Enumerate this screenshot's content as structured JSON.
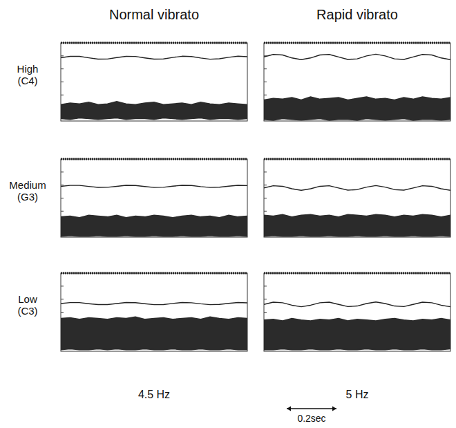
{
  "figure": {
    "columns": [
      {
        "title": "Normal vibrato",
        "rate": "4.5 Hz"
      },
      {
        "title": "Rapid vibrato",
        "rate": "5 Hz"
      }
    ],
    "rows": [
      {
        "label": "High",
        "note": "(C4)"
      },
      {
        "label": "Medium",
        "note": "(G3)"
      },
      {
        "label": "Low",
        "note": "(C3)"
      }
    ],
    "scale_bar": {
      "value": 0.2,
      "label": "0.2sec"
    }
  },
  "chart_data": [
    {
      "type": "line",
      "tick_labels": false,
      "xlim": [
        0,
        0.75
      ],
      "ylim": [
        0,
        100
      ],
      "x": [
        0,
        0.0375,
        0.075,
        0.1125,
        0.15,
        0.1875,
        0.225,
        0.2625,
        0.3,
        0.3375,
        0.375,
        0.4125,
        0.45,
        0.4875,
        0.525,
        0.5625,
        0.6,
        0.6375,
        0.675,
        0.7125,
        0.75
      ],
      "series": [
        {
          "type": "line",
          "color": "#222222",
          "values": [
            81,
            82.7,
            82.7,
            80.9,
            79.2,
            79.3,
            81.2,
            82.8,
            82.6,
            80.8,
            79.2,
            79.4,
            81.3,
            82.9,
            82.5,
            80.6,
            79.1,
            79.6,
            81.5,
            82.9,
            82.3
          ]
        },
        {
          "type": "area",
          "color": "#2b2b2b",
          "values": [
            21,
            23,
            22,
            24,
            21,
            22,
            25,
            22,
            21,
            23,
            24,
            21,
            22,
            23,
            21,
            24,
            22,
            21,
            23,
            22,
            21
          ],
          "lower": [
            3,
            2,
            4,
            3,
            2,
            3,
            4,
            2,
            3,
            3,
            2,
            4,
            3,
            2,
            3,
            4,
            2,
            3,
            3,
            2,
            3
          ]
        }
      ]
    },
    {
      "type": "line",
      "tick_labels": false,
      "xlim": [
        0,
        0.75
      ],
      "ylim": [
        0,
        100
      ],
      "x": [
        0,
        0.0375,
        0.075,
        0.1125,
        0.15,
        0.1875,
        0.225,
        0.2625,
        0.3,
        0.3375,
        0.375,
        0.4125,
        0.45,
        0.4875,
        0.525,
        0.5625,
        0.6,
        0.6375,
        0.675,
        0.7125,
        0.75
      ],
      "series": [
        {
          "type": "line",
          "color": "#222222",
          "values": [
            82,
            85.2,
            84.5,
            80.7,
            78.5,
            80.7,
            84.5,
            85.2,
            82,
            78.8,
            79.5,
            83.3,
            85.5,
            83.3,
            79.5,
            78.8,
            82,
            85.2,
            84.5,
            80.7,
            78.5
          ]
        },
        {
          "type": "area",
          "color": "#2b2b2b",
          "values": [
            27,
            29,
            28,
            30,
            27,
            31,
            28,
            29,
            30,
            27,
            29,
            31,
            28,
            29,
            27,
            30,
            28,
            31,
            29,
            28,
            30
          ],
          "lower": [
            2,
            1,
            3,
            2,
            1,
            2,
            3,
            1,
            2,
            2,
            1,
            3,
            2,
            1,
            2,
            3,
            1,
            2,
            2,
            1,
            2
          ]
        }
      ]
    },
    {
      "type": "line",
      "tick_labels": false,
      "xlim": [
        0,
        0.75
      ],
      "ylim": [
        0,
        100
      ],
      "x": [
        0,
        0.0375,
        0.075,
        0.1125,
        0.15,
        0.1875,
        0.225,
        0.2625,
        0.3,
        0.3375,
        0.375,
        0.4125,
        0.45,
        0.4875,
        0.525,
        0.5625,
        0.6,
        0.6375,
        0.675,
        0.7125,
        0.75
      ],
      "series": [
        {
          "type": "line",
          "color": "#222222",
          "values": [
            65,
            66.3,
            66.3,
            64.9,
            63.7,
            63.8,
            65.1,
            66.4,
            66.2,
            64.8,
            63.6,
            63.8,
            65.2,
            66.4,
            66.1,
            64.7,
            63.6,
            64,
            65.3,
            66.4,
            66
          ]
        },
        {
          "type": "area",
          "color": "#2b2b2b",
          "values": [
            26,
            27,
            25,
            28,
            27,
            26,
            28,
            25,
            27,
            26,
            28,
            27,
            25,
            27,
            28,
            26,
            27,
            25,
            28,
            26,
            27
          ],
          "lower": [
            1,
            2,
            1,
            1,
            2,
            1,
            1,
            2,
            1,
            1,
            2,
            1,
            1,
            2,
            1,
            1,
            2,
            1,
            1,
            2,
            1
          ]
        }
      ]
    },
    {
      "type": "line",
      "tick_labels": false,
      "xlim": [
        0,
        0.75
      ],
      "ylim": [
        0,
        100
      ],
      "x": [
        0,
        0.0375,
        0.075,
        0.1125,
        0.15,
        0.1875,
        0.225,
        0.2625,
        0.3,
        0.3375,
        0.375,
        0.4125,
        0.45,
        0.4875,
        0.525,
        0.5625,
        0.6,
        0.6375,
        0.675,
        0.7125,
        0.75
      ],
      "series": [
        {
          "type": "line",
          "color": "#222222",
          "values": [
            63,
            65.8,
            65.1,
            61.9,
            60,
            61.9,
            65.1,
            65.8,
            63,
            60.2,
            60.9,
            64.1,
            66,
            64.1,
            60.9,
            60.2,
            63,
            65.8,
            65.1,
            61.9,
            60
          ]
        },
        {
          "type": "area",
          "color": "#2b2b2b",
          "values": [
            28,
            27,
            29,
            26,
            28,
            29,
            27,
            28,
            26,
            29,
            28,
            27,
            29,
            28,
            26,
            28,
            27,
            29,
            28,
            26,
            28
          ],
          "lower": [
            1,
            2,
            1,
            1,
            2,
            1,
            1,
            2,
            1,
            1,
            2,
            1,
            1,
            2,
            1,
            1,
            2,
            1,
            1,
            2,
            1
          ]
        }
      ]
    },
    {
      "type": "line",
      "tick_labels": false,
      "xlim": [
        0,
        0.75
      ],
      "ylim": [
        0,
        100
      ],
      "x": [
        0,
        0.0375,
        0.075,
        0.1125,
        0.15,
        0.1875,
        0.225,
        0.2625,
        0.3,
        0.3375,
        0.375,
        0.4125,
        0.45,
        0.4875,
        0.525,
        0.5625,
        0.6,
        0.6375,
        0.675,
        0.7125,
        0.75
      ],
      "series": [
        {
          "type": "line",
          "color": "#222222",
          "values": [
            61,
            62.3,
            62.3,
            60.9,
            59.7,
            59.8,
            61.1,
            62.4,
            62.2,
            60.8,
            59.6,
            59.8,
            61.2,
            62.4,
            62.1,
            60.7,
            59.6,
            60,
            61.3,
            62.4,
            62
          ]
        },
        {
          "type": "area",
          "color": "#2b2b2b",
          "values": [
            42,
            43,
            41,
            43,
            42,
            41,
            43,
            42,
            44,
            41,
            42,
            43,
            41,
            42,
            43,
            41,
            44,
            42,
            41,
            43,
            42
          ],
          "lower": [
            2,
            3,
            2,
            2,
            3,
            2,
            3,
            2,
            2,
            3,
            2,
            2,
            3,
            2,
            2,
            3,
            2,
            2,
            3,
            2,
            2
          ]
        }
      ]
    },
    {
      "type": "line",
      "tick_labels": false,
      "xlim": [
        0,
        0.75
      ],
      "ylim": [
        0,
        100
      ],
      "x": [
        0,
        0.0375,
        0.075,
        0.1125,
        0.15,
        0.1875,
        0.225,
        0.2625,
        0.3,
        0.3375,
        0.375,
        0.4125,
        0.45,
        0.4875,
        0.525,
        0.5625,
        0.6,
        0.6375,
        0.675,
        0.7125,
        0.75
      ],
      "series": [
        {
          "type": "line",
          "color": "#222222",
          "values": [
            60,
            62.8,
            62.1,
            58.9,
            57,
            58.9,
            62.1,
            62.8,
            60,
            57.2,
            57.9,
            61.1,
            63,
            61.1,
            57.9,
            57.2,
            60,
            62.8,
            62.1,
            58.9,
            57
          ]
        },
        {
          "type": "area",
          "color": "#2b2b2b",
          "values": [
            40,
            41,
            39,
            42,
            40,
            39,
            41,
            40,
            42,
            39,
            41,
            40,
            39,
            41,
            42,
            40,
            39,
            41,
            40,
            42,
            40
          ],
          "lower": [
            2,
            2,
            3,
            2,
            2,
            3,
            2,
            2,
            3,
            2,
            2,
            3,
            2,
            2,
            3,
            2,
            2,
            3,
            2,
            2,
            3
          ]
        }
      ]
    }
  ]
}
